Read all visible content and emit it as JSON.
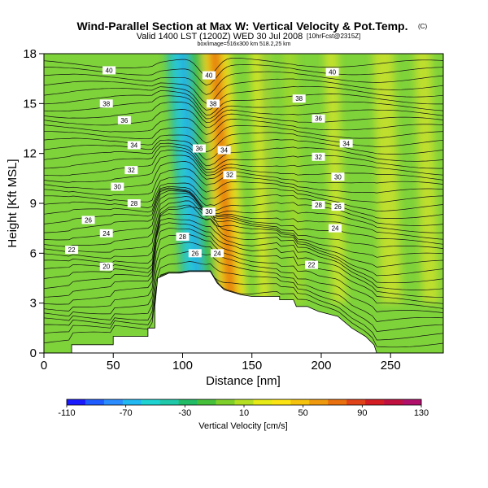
{
  "chart_data": {
    "type": "heatmap",
    "title": "Wind-Parallel Section at Max W: Vertical Velocity & Pot.Temp.",
    "title_mark": "(C)",
    "subtitle": "Valid 1400 LST (1200Z) WED 30 Jul 2008",
    "subtitle_right": "[10hrFcst@2315Z]",
    "subtitle2": "box/image=516x300 km 518.2,25 km",
    "xlabel": "Distance [nm]",
    "ylabel": "Height [Kft MSL]",
    "x_ticks": [
      0,
      50,
      100,
      150,
      200,
      250
    ],
    "y_ticks": [
      0,
      3,
      6,
      9,
      12,
      15,
      18
    ],
    "xlim": [
      0,
      288
    ],
    "ylim": [
      0,
      18
    ],
    "grid": false,
    "colorbar": {
      "label": "Vertical Velocity [cm/s]",
      "range": [
        -110,
        130
      ],
      "tick_labels": [
        "-110",
        "-70",
        "-30",
        "10",
        "50",
        "90",
        "130"
      ],
      "colors": [
        "#1a1aff",
        "#1f5cff",
        "#2a8cff",
        "#22b8f2",
        "#1fd3d3",
        "#1fc8a8",
        "#22bb66",
        "#46c03a",
        "#7fcf2a",
        "#b4de22",
        "#e6ea16",
        "#fce414",
        "#f5c20e",
        "#ef9a0e",
        "#e8700e",
        "#e0421a",
        "#d41c24",
        "#c0103f",
        "#b0106a"
      ]
    },
    "terrain": [
      [
        0,
        0
      ],
      [
        20,
        0
      ],
      [
        20,
        0.5
      ],
      [
        50,
        0.5
      ],
      [
        50,
        1.0
      ],
      [
        75,
        1.0
      ],
      [
        75,
        1.5
      ],
      [
        80,
        1.5
      ],
      [
        80,
        2.8
      ],
      [
        82,
        4.5
      ],
      [
        90,
        4.8
      ],
      [
        98,
        4.8
      ],
      [
        105,
        4.9
      ],
      [
        120,
        4.9
      ],
      [
        125,
        4.2
      ],
      [
        130,
        3.8
      ],
      [
        142,
        3.5
      ],
      [
        150,
        3.4
      ],
      [
        170,
        3.4
      ],
      [
        170,
        3.2
      ],
      [
        180,
        3.2
      ],
      [
        182,
        2.8
      ],
      [
        190,
        2.8
      ],
      [
        198,
        2.5
      ],
      [
        212,
        2.2
      ],
      [
        222,
        1.5
      ],
      [
        232,
        1.0
      ],
      [
        238,
        0.5
      ],
      [
        240,
        0
      ],
      [
        288,
        0
      ]
    ],
    "velocity_bands": [
      {
        "x": [
          94,
          98
        ],
        "w": -30,
        "color": "#22b8a8"
      },
      {
        "x": [
          98,
          110
        ],
        "w": -70,
        "color": "#22cce0"
      },
      {
        "x": [
          104,
          108
        ],
        "w": -90,
        "color": "#1f9cf0"
      },
      {
        "x": [
          110,
          120
        ],
        "w": -10,
        "color": "#3bbb44"
      },
      {
        "x": [
          120,
          124
        ],
        "w": 40,
        "color": "#f6e018"
      },
      {
        "x": [
          124,
          134
        ],
        "w": 70,
        "color": "#ef9a0e"
      },
      {
        "x": [
          127,
          131
        ],
        "w": 90,
        "color": "#e8600e"
      },
      {
        "x": [
          134,
          140
        ],
        "w": 40,
        "color": "#f3e21c"
      },
      {
        "x": [
          152,
          165
        ],
        "w": 20,
        "color": "#d8e624"
      },
      {
        "x": [
          160,
          163
        ],
        "w": -20,
        "color": "#2fb644"
      },
      {
        "x": [
          175,
          185
        ],
        "w": 0,
        "color": "#9ed82c"
      },
      {
        "x": [
          205,
          215
        ],
        "w": 10,
        "color": "#c9e22a"
      },
      {
        "x": [
          240,
          255
        ],
        "w": 10,
        "color": "#c6df2a"
      },
      {
        "x": [
          270,
          282
        ],
        "w": 10,
        "color": "#c6df2a"
      }
    ],
    "contour_levels": [
      20,
      22,
      24,
      26,
      28,
      30,
      32,
      34,
      36,
      38,
      40
    ],
    "contour_labels": [
      {
        "x": 45,
        "y": 5.2,
        "text": "20"
      },
      {
        "x": 20,
        "y": 6.2,
        "text": "22"
      },
      {
        "x": 45,
        "y": 7.2,
        "text": "24"
      },
      {
        "x": 32,
        "y": 8.0,
        "text": "26"
      },
      {
        "x": 65,
        "y": 9.0,
        "text": "28"
      },
      {
        "x": 53,
        "y": 10.0,
        "text": "30"
      },
      {
        "x": 63,
        "y": 11.0,
        "text": "32"
      },
      {
        "x": 65,
        "y": 12.5,
        "text": "34"
      },
      {
        "x": 58,
        "y": 14.0,
        "text": "36"
      },
      {
        "x": 45,
        "y": 15.0,
        "text": "38"
      },
      {
        "x": 47,
        "y": 17.0,
        "text": "40"
      },
      {
        "x": 109,
        "y": 6.0,
        "text": "26"
      },
      {
        "x": 125,
        "y": 6.0,
        "text": "24"
      },
      {
        "x": 100,
        "y": 7.0,
        "text": "28"
      },
      {
        "x": 119,
        "y": 8.5,
        "text": "30"
      },
      {
        "x": 134,
        "y": 10.7,
        "text": "32"
      },
      {
        "x": 130,
        "y": 12.2,
        "text": "34"
      },
      {
        "x": 112,
        "y": 12.3,
        "text": "36"
      },
      {
        "x": 122,
        "y": 15.0,
        "text": "38"
      },
      {
        "x": 119,
        "y": 16.7,
        "text": "40"
      },
      {
        "x": 193,
        "y": 5.3,
        "text": "22"
      },
      {
        "x": 210,
        "y": 7.5,
        "text": "24"
      },
      {
        "x": 212,
        "y": 8.8,
        "text": "26"
      },
      {
        "x": 198,
        "y": 8.9,
        "text": "28"
      },
      {
        "x": 212,
        "y": 10.6,
        "text": "30"
      },
      {
        "x": 198,
        "y": 11.8,
        "text": "32"
      },
      {
        "x": 218,
        "y": 12.6,
        "text": "34"
      },
      {
        "x": 198,
        "y": 14.1,
        "text": "36"
      },
      {
        "x": 184,
        "y": 15.3,
        "text": "38"
      },
      {
        "x": 208,
        "y": 16.9,
        "text": "40"
      }
    ]
  }
}
